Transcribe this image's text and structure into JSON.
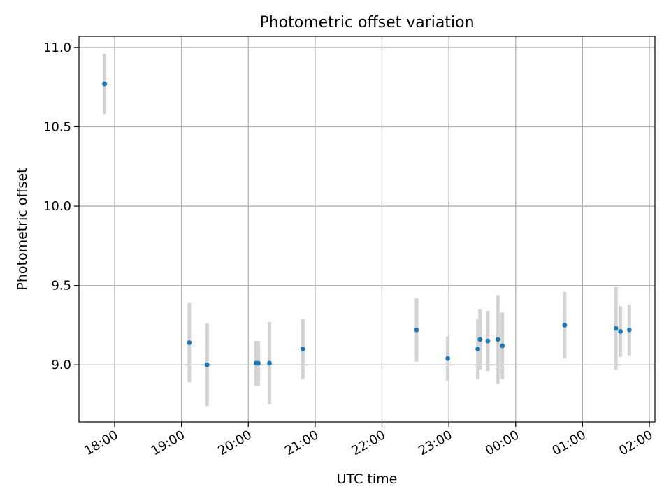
{
  "chart_data": {
    "type": "scatter",
    "title": "Photometric offset variation",
    "xlabel": "UTC time",
    "ylabel": "Photometric offset",
    "x_axis_type": "time",
    "x_range": [
      "17:28",
      "02:05"
    ],
    "ylim": [
      8.64,
      11.07
    ],
    "grid": true,
    "x_ticks": [
      "18:00",
      "19:00",
      "20:00",
      "21:00",
      "22:00",
      "23:00",
      "00:00",
      "01:00",
      "02:00"
    ],
    "y_ticks": [
      "9.0",
      "9.5",
      "10.0",
      "10.5",
      "11.0"
    ],
    "point_color": "#1f77b4",
    "errorbar_color": "#d3d3d3",
    "points": [
      {
        "x": "17:51",
        "y": 10.77,
        "err": 0.19
      },
      {
        "x": "19:07",
        "y": 9.14,
        "err": 0.25
      },
      {
        "x": "19:23",
        "y": 9.0,
        "err": 0.26
      },
      {
        "x": "20:07",
        "y": 9.01,
        "err": 0.14
      },
      {
        "x": "20:09",
        "y": 9.01,
        "err": 0.14
      },
      {
        "x": "20:19",
        "y": 9.01,
        "err": 0.26
      },
      {
        "x": "20:49",
        "y": 9.1,
        "err": 0.19
      },
      {
        "x": "22:31",
        "y": 9.22,
        "err": 0.2
      },
      {
        "x": "22:59",
        "y": 9.04,
        "err": 0.14
      },
      {
        "x": "23:26",
        "y": 9.1,
        "err": 0.19
      },
      {
        "x": "23:28",
        "y": 9.16,
        "err": 0.19
      },
      {
        "x": "23:35",
        "y": 9.15,
        "err": 0.19
      },
      {
        "x": "23:44",
        "y": 9.16,
        "err": 0.28
      },
      {
        "x": "23:48",
        "y": 9.12,
        "err": 0.21
      },
      {
        "x": "00:44",
        "y": 9.25,
        "err": 0.21
      },
      {
        "x": "01:30",
        "y": 9.23,
        "err": 0.26
      },
      {
        "x": "01:34",
        "y": 9.21,
        "err": 0.16
      },
      {
        "x": "01:42",
        "y": 9.22,
        "err": 0.16
      }
    ]
  }
}
